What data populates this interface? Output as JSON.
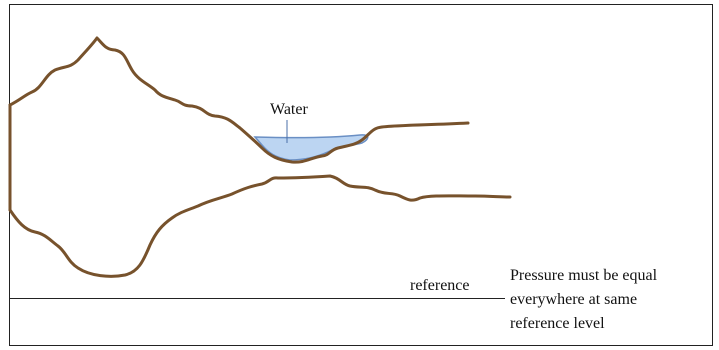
{
  "labels": {
    "water": "Water",
    "reference": "reference"
  },
  "note": {
    "lines": [
      "Pressure must be equal",
      "everywhere at same",
      "reference level"
    ]
  }
}
